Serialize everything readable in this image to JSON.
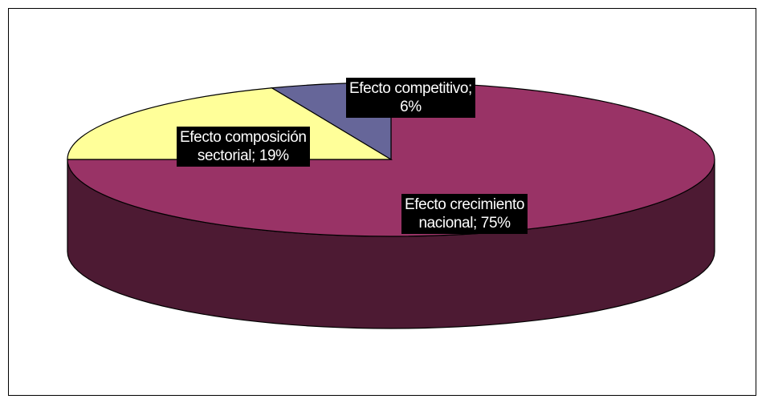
{
  "chart_data": {
    "type": "pie",
    "style": "3d",
    "categories": [
      "Efecto crecimiento nacional",
      "Efecto composición sectorial",
      "Efecto competitivo"
    ],
    "values": [
      75,
      19,
      6
    ],
    "unit": "%",
    "colors": [
      "#993366",
      "#FFFF99",
      "#666699"
    ],
    "side_colors": [
      "#4D1A33",
      "#80804D",
      "#33334D"
    ],
    "labels": [
      {
        "line1": "Efecto crecimiento",
        "line2": "nacional; 75%"
      },
      {
        "line1": "Efecto composición",
        "line2": "sectorial; 19%"
      },
      {
        "line1": "Efecto competitivo;",
        "line2": "6%"
      }
    ],
    "legend": "none",
    "start_angle_deg": 270
  }
}
